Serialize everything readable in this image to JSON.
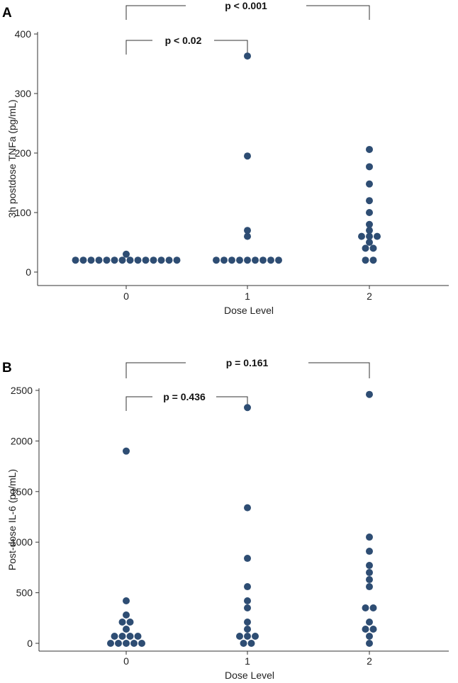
{
  "chart_data": [
    {
      "type": "scatter",
      "panel_label": "A",
      "xlabel": "Dose Level",
      "ylabel": "3h postdose TNFa (pg/mL)",
      "categories": [
        "0",
        "1",
        "2"
      ],
      "ylim": [
        0,
        400
      ],
      "yticks": [
        "0",
        "100",
        "200",
        "300",
        "400"
      ],
      "annotations": [
        {
          "label": "p < 0.001",
          "from": "0",
          "to": "2",
          "level": "outer"
        },
        {
          "label": "p < 0.02",
          "from": "0",
          "to": "1",
          "level": "inner"
        }
      ],
      "series": [
        {
          "x": "0",
          "values": [
            20,
            20,
            20,
            20,
            20,
            20,
            20,
            20,
            20,
            20,
            20,
            20,
            20,
            20,
            30
          ]
        },
        {
          "x": "1",
          "values": [
            20,
            20,
            20,
            20,
            20,
            20,
            20,
            20,
            20,
            60,
            70,
            195,
            363
          ]
        },
        {
          "x": "2",
          "values": [
            20,
            20,
            40,
            40,
            50,
            60,
            60,
            60,
            70,
            80,
            100,
            120,
            148,
            177,
            206
          ]
        }
      ]
    },
    {
      "type": "scatter",
      "panel_label": "B",
      "xlabel": "Dose Level",
      "ylabel": "Post-dose IL-6 (pg/mL)",
      "categories": [
        "0",
        "1",
        "2"
      ],
      "ylim": [
        0,
        2500
      ],
      "yticks": [
        "0",
        "500",
        "1000",
        "1500",
        "2000",
        "2500"
      ],
      "annotations": [
        {
          "label": "p = 0.161",
          "from": "0",
          "to": "2",
          "level": "outer"
        },
        {
          "label": "p = 0.436",
          "from": "0",
          "to": "1",
          "level": "inner"
        }
      ],
      "series": [
        {
          "x": "0",
          "values": [
            0,
            0,
            0,
            0,
            0,
            70,
            70,
            70,
            70,
            140,
            210,
            210,
            280,
            420,
            1900
          ]
        },
        {
          "x": "1",
          "values": [
            0,
            0,
            70,
            70,
            70,
            140,
            210,
            350,
            420,
            560,
            840,
            1340,
            2330
          ]
        },
        {
          "x": "2",
          "values": [
            0,
            70,
            140,
            140,
            210,
            350,
            350,
            560,
            630,
            700,
            770,
            910,
            1050,
            2460
          ]
        }
      ]
    }
  ]
}
